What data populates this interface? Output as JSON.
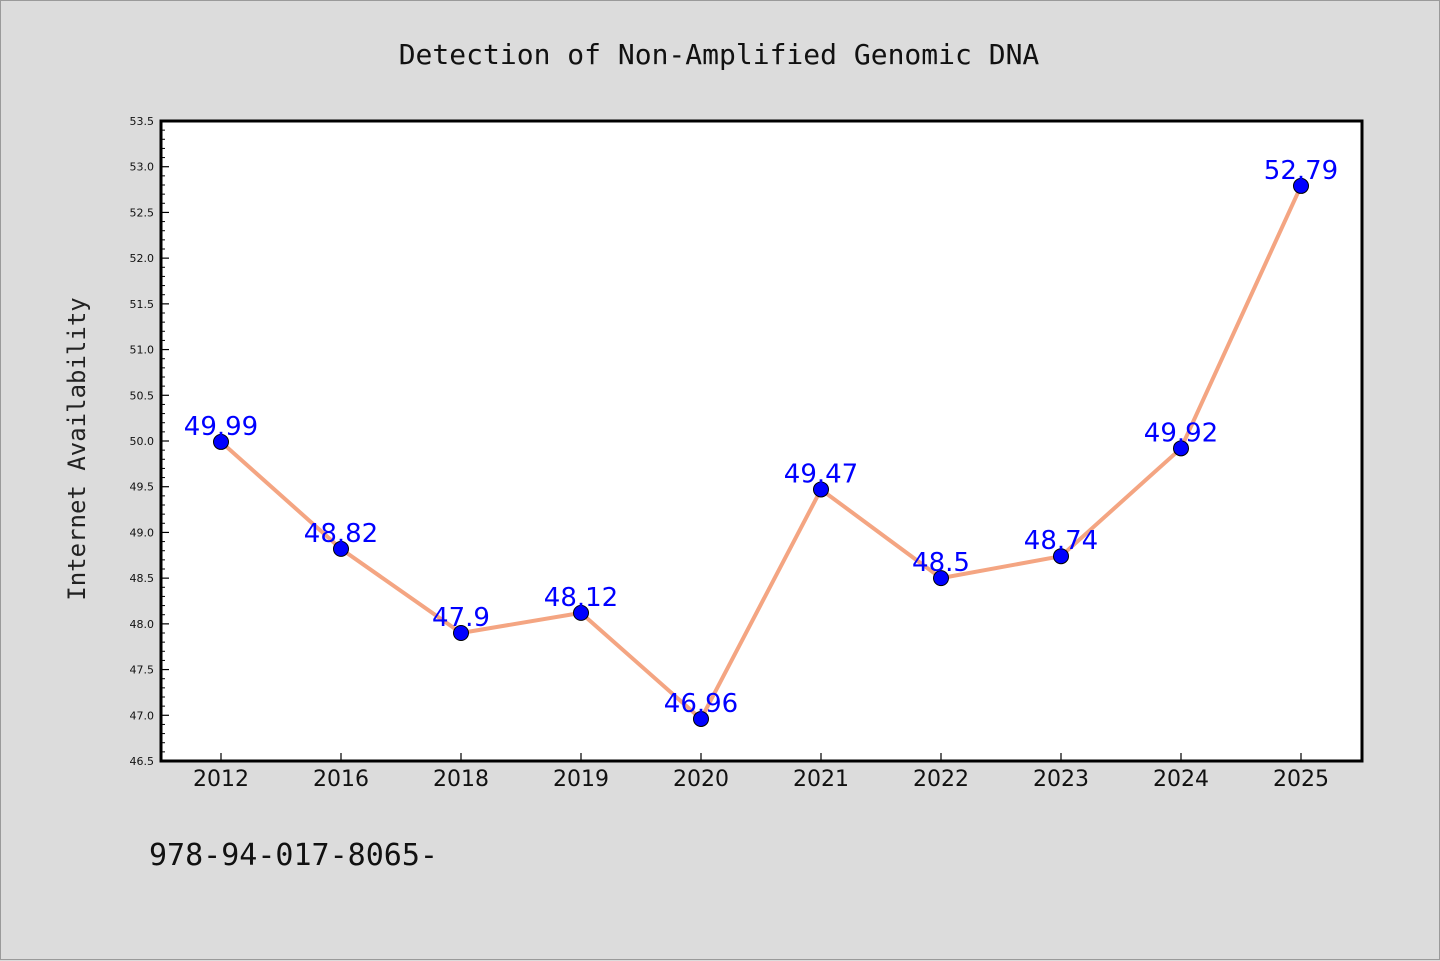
{
  "chart_data": {
    "type": "line",
    "title": "Detection of Non-Amplified Genomic DNA",
    "xlabel": "",
    "ylabel": "Internet Availability",
    "categories": [
      "2012",
      "2016",
      "2018",
      "2019",
      "2020",
      "2021",
      "2022",
      "2023",
      "2024",
      "2025"
    ],
    "series": [
      {
        "values": [
          49.99,
          48.82,
          47.9,
          48.12,
          46.96,
          49.47,
          48.5,
          48.74,
          49.92,
          52.79
        ],
        "labels": [
          "49.99",
          "48.82",
          "47.9",
          "48.12",
          "46.96",
          "49.47",
          "48.5",
          "48.74",
          "49.92",
          "52.79"
        ],
        "line_color": "#f4a582",
        "marker_color": "#0000ff"
      }
    ],
    "ylim": [
      46.5,
      53.5
    ],
    "yticks": [
      "46.5",
      "47.0",
      "47.5",
      "48.0",
      "48.5",
      "49.0",
      "49.5",
      "50.0",
      "50.5",
      "51.0",
      "51.5",
      "52.0",
      "52.5",
      "53.0",
      "53.5"
    ],
    "grid": false,
    "legend": "none",
    "label_color": "#0000ff"
  },
  "footer": {
    "text": "978-94-017-8065-"
  },
  "colors": {
    "background": "#dcdcdc",
    "plot_background": "#ffffff",
    "axis": "#000000"
  }
}
